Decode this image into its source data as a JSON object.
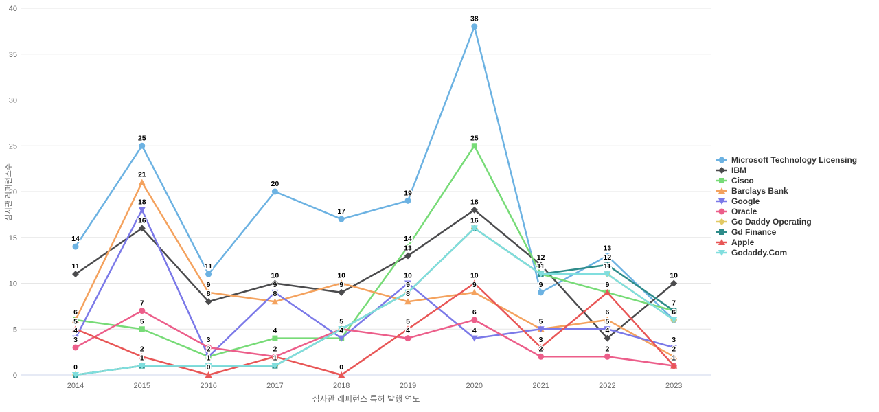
{
  "chart_data": {
    "type": "line",
    "title": "",
    "xlabel": "심사관 레퍼런스 특허 발행 연도",
    "ylabel": "심사관 레퍼런스수",
    "x": [
      2014,
      2015,
      2016,
      2017,
      2018,
      2019,
      2020,
      2021,
      2022,
      2023
    ],
    "ylim": [
      0,
      40
    ],
    "yticks": [
      0,
      5,
      10,
      15,
      20,
      25,
      30,
      35,
      40
    ],
    "grid": true,
    "legend_position": "right",
    "grid_color": "#e6e6e6",
    "zero_line_color": "#ccd6eb",
    "tick_label_color": "#666666",
    "data_label_color": "#000000",
    "series": [
      {
        "name": "Microsoft Technology Licensing",
        "color": "#6CB2E2",
        "marker": "circle",
        "values": [
          14,
          25,
          11,
          20,
          17,
          19,
          38,
          9,
          13,
          6
        ]
      },
      {
        "name": "IBM",
        "color": "#4B4B4D",
        "marker": "diamond",
        "values": [
          11,
          16,
          8,
          10,
          9,
          13,
          18,
          12,
          4,
          10
        ]
      },
      {
        "name": "Cisco",
        "color": "#77DB77",
        "marker": "square",
        "values": [
          6,
          5,
          2,
          4,
          4,
          14,
          25,
          11,
          9,
          7
        ]
      },
      {
        "name": "Barclays Bank",
        "color": "#F4A25E",
        "marker": "triangle",
        "values": [
          6,
          21,
          9,
          8,
          10,
          8,
          9,
          5,
          6,
          2
        ]
      },
      {
        "name": "Google",
        "color": "#7B79E8",
        "marker": "triangle-down",
        "values": [
          4,
          18,
          2,
          9,
          4,
          10,
          4,
          5,
          5,
          3
        ]
      },
      {
        "name": "Oracle",
        "color": "#EC5E8A",
        "marker": "circle",
        "values": [
          3,
          7,
          3,
          2,
          5,
          4,
          6,
          2,
          2,
          1
        ]
      },
      {
        "name": "Go Daddy Operating",
        "color": "#E2C964",
        "marker": "diamond",
        "values": [
          0,
          1,
          1,
          1,
          5,
          9,
          16,
          11,
          11,
          6
        ]
      },
      {
        "name": "Gd Finance",
        "color": "#2E8C8A",
        "marker": "square",
        "values": [
          0,
          1,
          1,
          1,
          5,
          9,
          16,
          11,
          12,
          7
        ]
      },
      {
        "name": "Apple",
        "color": "#E85656",
        "marker": "triangle",
        "values": [
          5,
          2,
          0,
          2,
          0,
          5,
          10,
          3,
          9,
          1
        ]
      },
      {
        "name": "Godaddy.Com",
        "color": "#80DEDE",
        "marker": "triangle-down",
        "values": [
          0,
          1,
          1,
          1,
          5,
          9,
          16,
          11,
          11,
          6
        ]
      }
    ]
  }
}
